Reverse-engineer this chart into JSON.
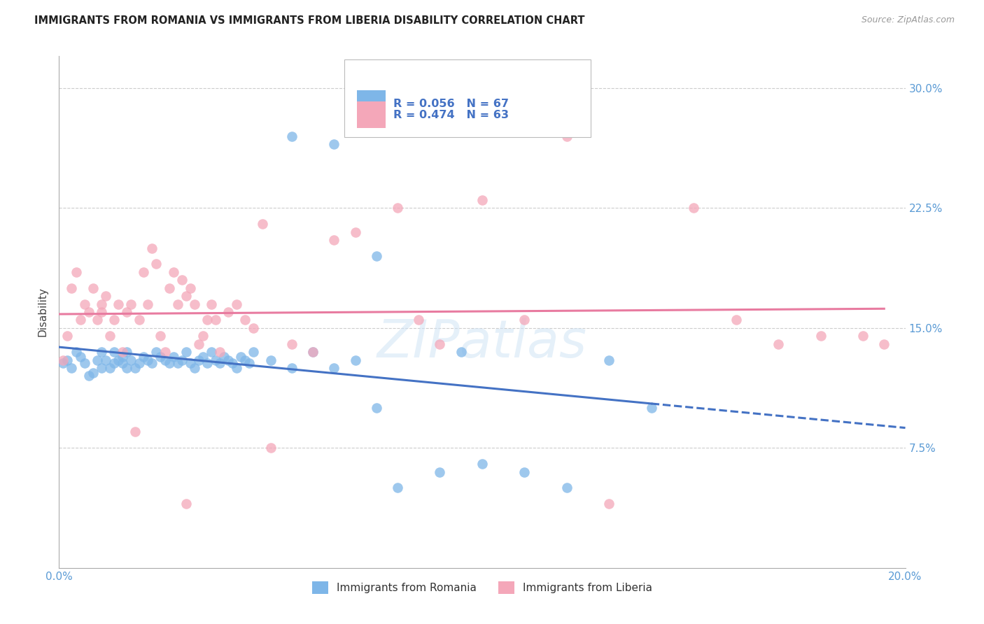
{
  "title": "IMMIGRANTS FROM ROMANIA VS IMMIGRANTS FROM LIBERIA DISABILITY CORRELATION CHART",
  "source": "Source: ZipAtlas.com",
  "ylabel": "Disability",
  "watermark": "ZIPatlas",
  "xlim": [
    0.0,
    0.2
  ],
  "ylim": [
    0.0,
    0.32
  ],
  "xticks": [
    0.0,
    0.04,
    0.08,
    0.12,
    0.16,
    0.2
  ],
  "xtick_labels": [
    "0.0%",
    "",
    "",
    "",
    "",
    "20.0%"
  ],
  "yticks_right": [
    0.075,
    0.15,
    0.225,
    0.3
  ],
  "ytick_labels_right": [
    "7.5%",
    "15.0%",
    "22.5%",
    "30.0%"
  ],
  "romania_color": "#7EB6E8",
  "liberia_color": "#F4A7B9",
  "romania_R": 0.056,
  "romania_N": 67,
  "liberia_R": 0.474,
  "liberia_N": 63,
  "romania_line_color": "#4472C4",
  "liberia_line_color": "#E87BA0",
  "background_color": "#FFFFFF",
  "legend_label_romania": "Immigrants from Romania",
  "legend_label_liberia": "Immigrants from Liberia",
  "romania_x": [
    0.001,
    0.002,
    0.003,
    0.004,
    0.005,
    0.006,
    0.007,
    0.008,
    0.009,
    0.01,
    0.01,
    0.011,
    0.012,
    0.013,
    0.013,
    0.014,
    0.015,
    0.015,
    0.016,
    0.016,
    0.017,
    0.018,
    0.019,
    0.02,
    0.021,
    0.022,
    0.023,
    0.024,
    0.025,
    0.026,
    0.027,
    0.028,
    0.029,
    0.03,
    0.031,
    0.032,
    0.033,
    0.034,
    0.035,
    0.036,
    0.037,
    0.038,
    0.039,
    0.04,
    0.041,
    0.042,
    0.043,
    0.044,
    0.045,
    0.046,
    0.05,
    0.055,
    0.06,
    0.065,
    0.07,
    0.075,
    0.08,
    0.09,
    0.1,
    0.11,
    0.12,
    0.13,
    0.14,
    0.055,
    0.065,
    0.075,
    0.095
  ],
  "romania_y": [
    0.128,
    0.13,
    0.125,
    0.135,
    0.132,
    0.128,
    0.12,
    0.122,
    0.13,
    0.125,
    0.135,
    0.13,
    0.125,
    0.128,
    0.135,
    0.13,
    0.132,
    0.128,
    0.135,
    0.125,
    0.13,
    0.125,
    0.128,
    0.132,
    0.13,
    0.128,
    0.135,
    0.132,
    0.13,
    0.128,
    0.132,
    0.128,
    0.13,
    0.135,
    0.128,
    0.125,
    0.13,
    0.132,
    0.128,
    0.135,
    0.13,
    0.128,
    0.132,
    0.13,
    0.128,
    0.125,
    0.132,
    0.13,
    0.128,
    0.135,
    0.13,
    0.125,
    0.135,
    0.125,
    0.13,
    0.1,
    0.05,
    0.06,
    0.065,
    0.06,
    0.05,
    0.13,
    0.1,
    0.27,
    0.265,
    0.195,
    0.135
  ],
  "liberia_x": [
    0.001,
    0.002,
    0.003,
    0.004,
    0.005,
    0.006,
    0.007,
    0.008,
    0.009,
    0.01,
    0.01,
    0.011,
    0.012,
    0.013,
    0.014,
    0.015,
    0.016,
    0.017,
    0.018,
    0.019,
    0.02,
    0.021,
    0.022,
    0.023,
    0.024,
    0.025,
    0.026,
    0.027,
    0.028,
    0.029,
    0.03,
    0.031,
    0.032,
    0.033,
    0.034,
    0.035,
    0.036,
    0.037,
    0.038,
    0.04,
    0.042,
    0.044,
    0.046,
    0.048,
    0.05,
    0.055,
    0.06,
    0.065,
    0.07,
    0.08,
    0.085,
    0.09,
    0.1,
    0.11,
    0.12,
    0.13,
    0.15,
    0.16,
    0.17,
    0.18,
    0.19,
    0.195,
    0.03
  ],
  "liberia_y": [
    0.13,
    0.145,
    0.175,
    0.185,
    0.155,
    0.165,
    0.16,
    0.175,
    0.155,
    0.165,
    0.16,
    0.17,
    0.145,
    0.155,
    0.165,
    0.135,
    0.16,
    0.165,
    0.085,
    0.155,
    0.185,
    0.165,
    0.2,
    0.19,
    0.145,
    0.135,
    0.175,
    0.185,
    0.165,
    0.18,
    0.17,
    0.175,
    0.165,
    0.14,
    0.145,
    0.155,
    0.165,
    0.155,
    0.135,
    0.16,
    0.165,
    0.155,
    0.15,
    0.215,
    0.075,
    0.14,
    0.135,
    0.205,
    0.21,
    0.225,
    0.155,
    0.14,
    0.23,
    0.155,
    0.27,
    0.04,
    0.225,
    0.155,
    0.14,
    0.145,
    0.145,
    0.14,
    0.04
  ]
}
